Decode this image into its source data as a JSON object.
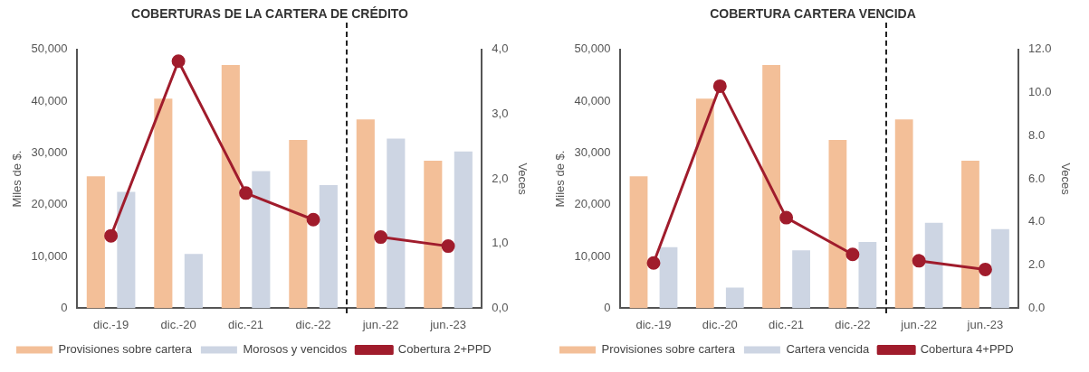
{
  "chart_data": [
    {
      "type": "bar",
      "title": "COBERTURAS DE LA CARTERA DE CRÉDITO",
      "ylabel": "Miles de $.",
      "y2label": "Veces",
      "categories": [
        "dic.-19",
        "dic.-20",
        "dic.-21",
        "dic.-22",
        "jun.-22",
        "jun.-23"
      ],
      "series": [
        {
          "name": "Provisiones sobre cartera",
          "color": "#f3bf98",
          "values": [
            25500,
            40500,
            47000,
            32500,
            36500,
            28500
          ]
        },
        {
          "name": "Morosos y vencidos",
          "color": "#cdd5e3",
          "values": [
            22500,
            10500,
            26500,
            23800,
            32800,
            30300
          ]
        },
        {
          "name": "Cobertura 2+PPD",
          "type": "line",
          "axis": "y2",
          "color": "#a01c2c",
          "values": [
            1.12,
            3.82,
            1.78,
            1.37,
            1.1,
            0.96
          ]
        }
      ],
      "ylim": [
        0,
        50000
      ],
      "yticks": [
        {
          "value": 0,
          "label": "0"
        },
        {
          "value": 10000,
          "label": "10,000"
        },
        {
          "value": 20000,
          "label": "20,000"
        },
        {
          "value": 30000,
          "label": "30,000"
        },
        {
          "value": 40000,
          "label": "40,000"
        },
        {
          "value": 50000,
          "label": "50,000"
        }
      ],
      "y2lim": [
        0,
        4
      ],
      "y2ticks": [
        {
          "value": 0,
          "label": "0,0"
        },
        {
          "value": 1,
          "label": "1,0"
        },
        {
          "value": 2,
          "label": "2,0"
        },
        {
          "value": 3,
          "label": "3,0"
        },
        {
          "value": 4,
          "label": "4,0"
        }
      ],
      "grid": false,
      "legend": "bottom",
      "marker": "circle",
      "line_style": "solid"
    },
    {
      "type": "bar",
      "title": "COBERTURA CARTERA VENCIDA",
      "ylabel": "Miles de $.",
      "y2label": "Veces",
      "categories": [
        "dic.-19",
        "dic.-20",
        "dic.-21",
        "dic.-22",
        "jun.-22",
        "jun.-23"
      ],
      "series": [
        {
          "name": "Provisiones sobre cartera",
          "color": "#f3bf98",
          "values": [
            25500,
            40500,
            47000,
            32500,
            36500,
            28500
          ]
        },
        {
          "name": "Cartera vencida",
          "color": "#cdd5e3",
          "values": [
            11800,
            4000,
            11200,
            12800,
            16500,
            15300
          ]
        },
        {
          "name": "Cobertura 4+PPD",
          "type": "line",
          "axis": "y2",
          "color": "#a01c2c",
          "values": [
            2.1,
            10.3,
            4.2,
            2.5,
            2.2,
            1.8
          ]
        }
      ],
      "ylim": [
        0,
        50000
      ],
      "yticks": [
        {
          "value": 0,
          "label": "0"
        },
        {
          "value": 10000,
          "label": "10,000"
        },
        {
          "value": 20000,
          "label": "20,000"
        },
        {
          "value": 30000,
          "label": "30,000"
        },
        {
          "value": 40000,
          "label": "40,000"
        },
        {
          "value": 50000,
          "label": "50,000"
        }
      ],
      "y2lim": [
        0,
        12
      ],
      "y2ticks": [
        {
          "value": 0,
          "label": "0.0"
        },
        {
          "value": 2,
          "label": "2.0"
        },
        {
          "value": 4,
          "label": "4.0"
        },
        {
          "value": 6,
          "label": "6.0"
        },
        {
          "value": 8,
          "label": "8.0"
        },
        {
          "value": 10,
          "label": "10.0"
        },
        {
          "value": 12,
          "label": "12.0"
        }
      ],
      "grid": false,
      "legend": "bottom",
      "marker": "circle",
      "line_style": "solid"
    }
  ]
}
